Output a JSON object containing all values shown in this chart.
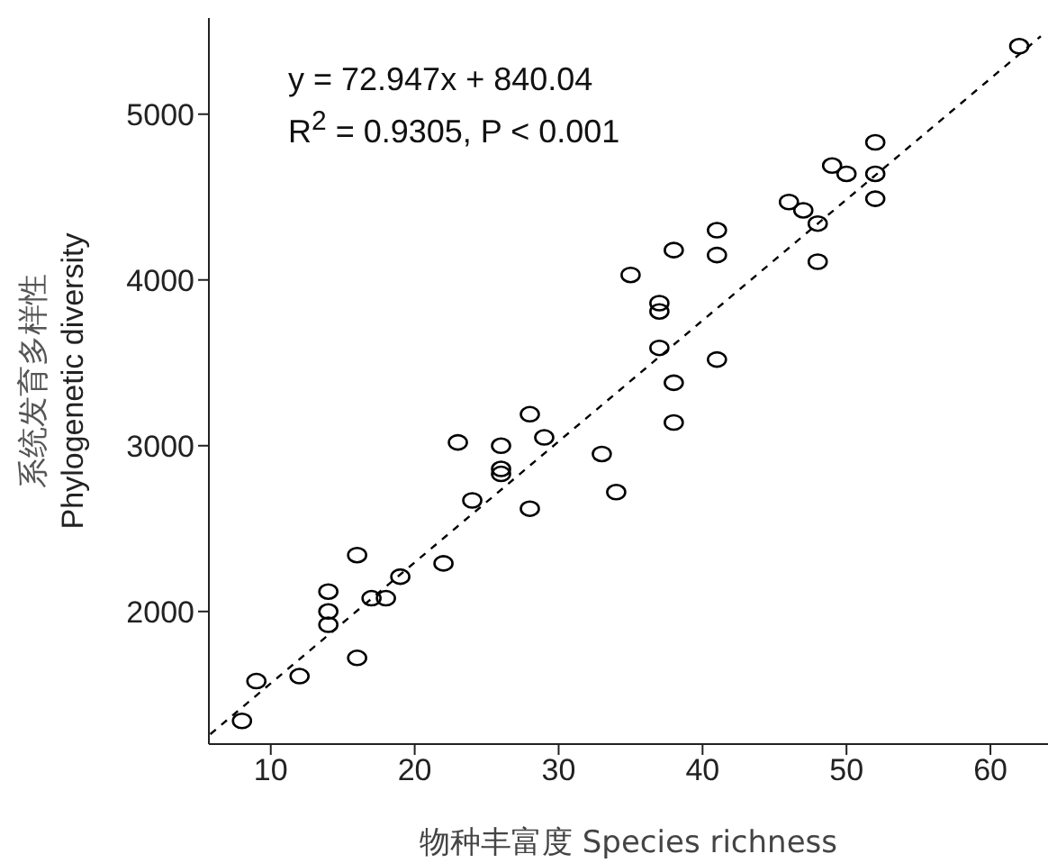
{
  "chart_data": {
    "type": "scatter",
    "xlabel": "物种丰富度  Species richness",
    "ylabel": "系统发育多样性\nPhylogenetic diversity",
    "xlim": [
      5.7,
      64
    ],
    "xticks": [
      10,
      20,
      30,
      40,
      50,
      60
    ],
    "ylim": [
      1200,
      5580
    ],
    "yticks": [
      2000,
      3000,
      4000,
      5000
    ],
    "marker": "circle",
    "annotations": [
      "y = 72.947x + 840.04",
      "R$^{2}$ = 0.9305,  P < 0.001"
    ],
    "series": [
      {
        "color": "#000000",
        "x": [
          8,
          9,
          12,
          14,
          14,
          14,
          16,
          16,
          17,
          18,
          19,
          22,
          24,
          23,
          26,
          26,
          26,
          28,
          29,
          28,
          33,
          34,
          38,
          38,
          41,
          37,
          37,
          37,
          35,
          38,
          41,
          41,
          48,
          48,
          46,
          47,
          49,
          50,
          52,
          52,
          52,
          62
        ],
        "values": [
          1340,
          1580,
          1610,
          2120,
          2000,
          1920,
          2340,
          1720,
          2080,
          2080,
          2210,
          2290,
          2670,
          3020,
          3000,
          2860,
          2830,
          3190,
          3050,
          2620,
          2950,
          2720,
          3380,
          3140,
          3520,
          3590,
          3860,
          3810,
          4030,
          4180,
          4300,
          4150,
          4340,
          4110,
          4470,
          4420,
          4690,
          4640,
          4830,
          4640,
          4490,
          5410
        ]
      },
      {
        "type": "line",
        "color": "#000000",
        "line_style": "dashed",
        "marker": "none",
        "x": [
          5.8,
          63.5
        ],
        "values": [
          1260,
          5470
        ]
      }
    ]
  }
}
